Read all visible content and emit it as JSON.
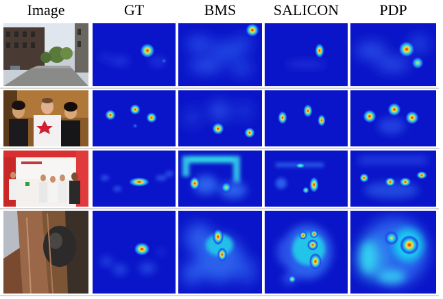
{
  "figure": {
    "columns": [
      "Image",
      "GT",
      "BMS",
      "SALICON",
      "PDP"
    ],
    "rows": [
      {
        "scene": "street-photo"
      },
      {
        "scene": "three-people-photo"
      },
      {
        "scene": "stage-event-photo"
      },
      {
        "scene": "curtain-closeup-photo"
      }
    ],
    "colors": {
      "heat_background": "#0a14c8",
      "heat_low": "#2a50f0",
      "heat_mid": "#18d0f0",
      "heat_high": "#ffe030",
      "heat_peak": "#e01a10"
    }
  }
}
